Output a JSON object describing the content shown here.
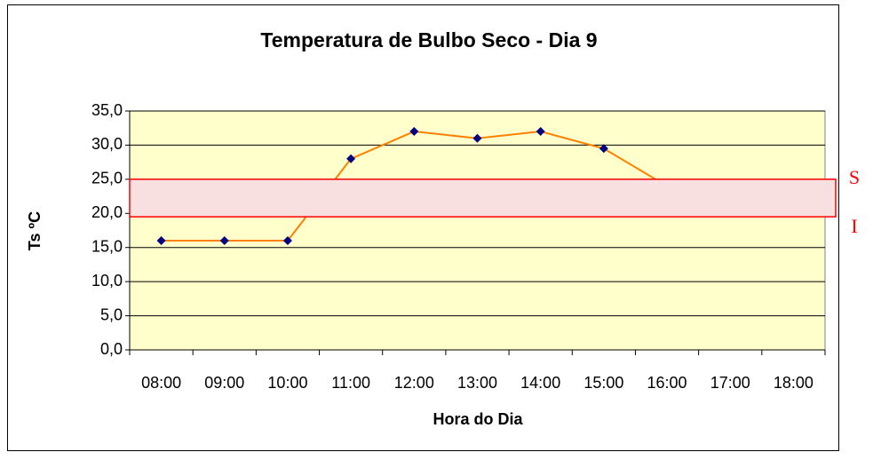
{
  "chart_data": {
    "type": "line",
    "title": "Temperatura de Bulbo Seco - Dia 9",
    "x_label": "Hora do Dia",
    "y_label": "Ts ºC",
    "categories": [
      "08:00",
      "09:00",
      "10:00",
      "11:00",
      "12:00",
      "13:00",
      "14:00",
      "15:00",
      "16:00",
      "17:00",
      "18:00"
    ],
    "series": [
      {
        "name": "Ts",
        "color": "#ff8000",
        "marker_color": "#000080",
        "values": [
          16,
          16,
          16,
          28,
          32,
          31,
          32,
          29.5,
          24,
          null,
          null
        ]
      }
    ],
    "ylim": [
      0,
      35
    ],
    "yticks": [
      {
        "value": 0,
        "label": "0,0"
      },
      {
        "value": 5,
        "label": "5,0"
      },
      {
        "value": 10,
        "label": "10,0"
      },
      {
        "value": 15,
        "label": "15,0"
      },
      {
        "value": 20,
        "label": "20,0"
      },
      {
        "value": 25,
        "label": "25,0"
      },
      {
        "value": 30,
        "label": "30,0"
      },
      {
        "value": 35,
        "label": "35,0"
      }
    ],
    "grid": true,
    "plot_background": "#ffffcc",
    "band": {
      "upper": 25,
      "lower": 19.5,
      "upper_label": "S",
      "lower_label": "I",
      "fill": "#f8e0e0",
      "stroke": "#ff0000"
    }
  }
}
